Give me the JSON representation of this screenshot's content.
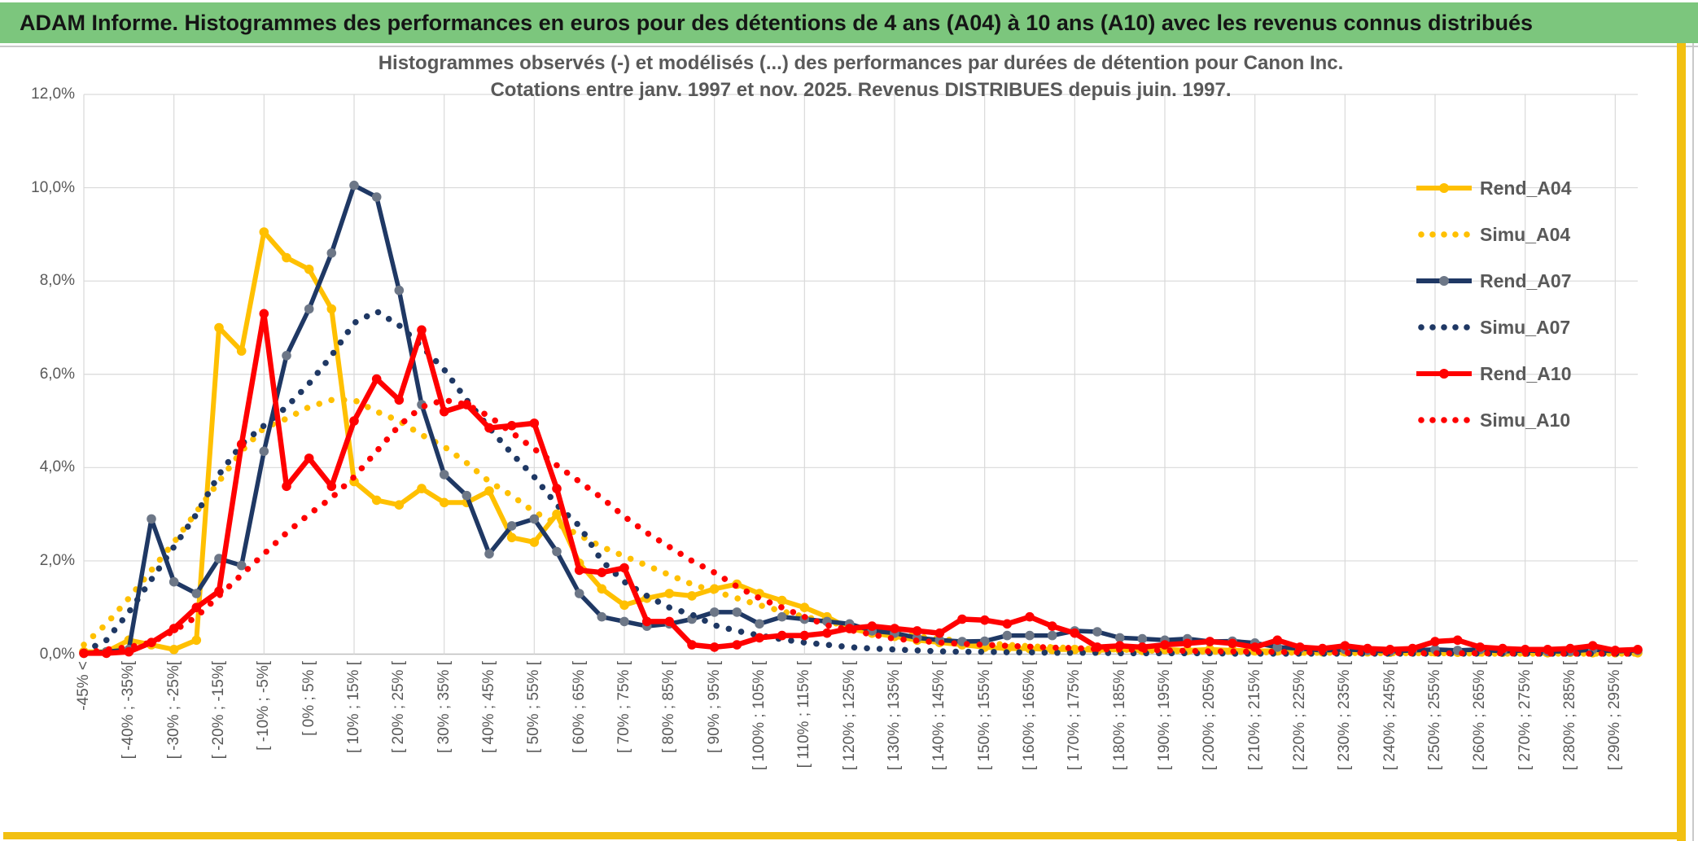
{
  "header": {
    "title": "ADAM Informe. Histogrammes des performances en euros pour des détentions de 4 ans (A04) à 10 ans (A10) avec les revenus connus distribués"
  },
  "chart": {
    "title_line1": "Histogrammes observés (-) et modélisés (...) des performances par durées de détention pour Canon Inc.",
    "title_line2": "Cotations entre janv. 1997 et nov. 2025. Revenus DISTRIBUES depuis juin. 1997.",
    "y_ticks": [
      {
        "label": "12,0%",
        "value": 12
      },
      {
        "label": "10,0%",
        "value": 10
      },
      {
        "label": "8,0%",
        "value": 8
      },
      {
        "label": "6,0%",
        "value": 6
      },
      {
        "label": "4,0%",
        "value": 4
      },
      {
        "label": "2,0%",
        "value": 2
      },
      {
        "label": "0,0%",
        "value": 0
      }
    ],
    "legend": {
      "position": "right",
      "items": [
        {
          "label": "Rend_A04",
          "style": "solid",
          "color": "#FFC000",
          "marker_color": "#FFC000"
        },
        {
          "label": "Simu_A04",
          "style": "dotted",
          "color": "#FFC000"
        },
        {
          "label": "Rend_A07",
          "style": "solid",
          "color": "#1F3864",
          "marker_color": "#6D7787"
        },
        {
          "label": "Simu_A07",
          "style": "dotted",
          "color": "#1F3864"
        },
        {
          "label": "Rend_A10",
          "style": "solid",
          "color": "#FF0000",
          "marker_color": "#FF0000"
        },
        {
          "label": "Simu_A10",
          "style": "dotted",
          "color": "#FF0000"
        }
      ]
    },
    "colors": {
      "header_green": "#7CC67D",
      "gold_border": "#F2C011",
      "gridline": "#D9D9D9",
      "axis_line": "#BFBFBF",
      "text_gray": "#595959",
      "series_yellow": "#FFC000",
      "series_navy": "#1F3864",
      "series_navy_marker": "#6D7787",
      "series_red": "#FF0000"
    }
  },
  "chart_data": {
    "type": "line",
    "note": "Histogram frequencies (%) per 5%-wide performance bins; 70 bins from '< -45%' to [295%;300%[; axis labels shown every 2nd bin; grid on; legend right",
    "n_bins": 70,
    "bin_width_pct": 5,
    "label_interval": 2,
    "ylim": [
      0,
      12
    ],
    "ylabel": "",
    "xlabel": "",
    "x_tick_labels": [
      "-45% <",
      "[ -40% ; -35%[",
      "[ -30% ; -25%[",
      "[ -20% ; -15%[",
      "[ -10% ; -5%[",
      "[ 0% ; 5% [",
      "[ 10% ; 15% [",
      "[ 20% ; 25% [",
      "[ 30% ; 35% [",
      "[ 40% ; 45% [",
      "[ 50% ; 55% [",
      "[ 60% ; 65% [",
      "[ 70% ; 75% [",
      "[ 80% ; 85% [",
      "[ 90% ; 95% [",
      "[ 100% ; 105% [",
      "[ 110% ; 115% [",
      "[ 120% ; 125% [",
      "[ 130% ; 135% [",
      "[ 140% ; 145% [",
      "[ 150% ; 155% [",
      "[ 160% ; 165% [",
      "[ 170% ; 175% [",
      "[ 180% ; 185% [",
      "[ 190% ; 195% [",
      "[ 200% ; 205% [",
      "[ 210% ; 215% [",
      "[ 220% ; 225% [",
      "[ 230% ; 235% [",
      "[ 240% ; 245% [",
      "[ 250% ; 255% [",
      "[ 260% ; 265% [",
      "[ 270% ; 275% [",
      "[ 280% ; 285% [",
      "[ 290% ; 295% ["
    ],
    "series": [
      {
        "name": "Rend_A04",
        "style": "solid",
        "color": "#FFC000",
        "marker_color": "#FFC000",
        "line_width": 6,
        "values": [
          0.05,
          0.05,
          0.3,
          0.2,
          0.1,
          0.3,
          7.0,
          6.5,
          9.05,
          8.5,
          8.25,
          7.4,
          3.7,
          3.3,
          3.2,
          3.55,
          3.25,
          3.25,
          3.5,
          2.5,
          2.4,
          3.0,
          1.95,
          1.4,
          1.05,
          1.2,
          1.3,
          1.25,
          1.4,
          1.5,
          1.3,
          1.15,
          1.0,
          0.8,
          0.55,
          0.45,
          0.38,
          0.3,
          0.25,
          0.2,
          0.15,
          0.12,
          0.12,
          0.1,
          0.1,
          0.08,
          0.1,
          0.08,
          0.1,
          0.08,
          0.1,
          0.08,
          0.07,
          0.07,
          0.06,
          0.05,
          0.05,
          0.05,
          0.04,
          0.05,
          0.05,
          0.04,
          0.05,
          0.04,
          0.04,
          0.03,
          0.04,
          0.03,
          0.03,
          0.03
        ]
      },
      {
        "name": "Simu_A04",
        "style": "dotted",
        "color": "#FFC000",
        "values": [
          0.2,
          0.65,
          1.2,
          1.8,
          2.4,
          3.05,
          3.7,
          4.35,
          4.85,
          5.05,
          5.3,
          5.45,
          5.45,
          5.2,
          5.0,
          4.7,
          4.45,
          4.1,
          3.7,
          3.4,
          3.05,
          2.8,
          2.55,
          2.3,
          2.1,
          1.9,
          1.7,
          1.5,
          1.35,
          1.2,
          1.05,
          0.92,
          0.8,
          0.7,
          0.6,
          0.52,
          0.45,
          0.38,
          0.33,
          0.28,
          0.24,
          0.2,
          0.17,
          0.15,
          0.13,
          0.11,
          0.1,
          0.08,
          0.07,
          0.06,
          0.05,
          0.05,
          0.04,
          0.04,
          0.03,
          0.03,
          0.03,
          0.02,
          0.02,
          0.02,
          0.02,
          0.02,
          0.01,
          0.01,
          0.01,
          0.01,
          0.01,
          0.01,
          0.01,
          0.01
        ]
      },
      {
        "name": "Rend_A07",
        "style": "solid",
        "color": "#1F3864",
        "marker_color": "#6D7787",
        "line_width": 5.5,
        "values": [
          0.02,
          0.05,
          0.1,
          2.9,
          1.55,
          1.3,
          2.05,
          1.9,
          4.35,
          6.4,
          7.4,
          8.6,
          10.05,
          9.8,
          7.8,
          5.35,
          3.85,
          3.4,
          2.15,
          2.75,
          2.9,
          2.2,
          1.3,
          0.8,
          0.7,
          0.6,
          0.65,
          0.75,
          0.9,
          0.9,
          0.65,
          0.8,
          0.75,
          0.7,
          0.65,
          0.5,
          0.45,
          0.35,
          0.3,
          0.27,
          0.28,
          0.4,
          0.4,
          0.4,
          0.5,
          0.48,
          0.35,
          0.33,
          0.3,
          0.33,
          0.27,
          0.28,
          0.24,
          0.15,
          0.12,
          0.08,
          0.1,
          0.08,
          0.06,
          0.08,
          0.1,
          0.08,
          0.1,
          0.06,
          0.08,
          0.06,
          0.06,
          0.1,
          0.06,
          0.08
        ]
      },
      {
        "name": "Simu_A07",
        "style": "dotted",
        "color": "#1F3864",
        "values": [
          0.05,
          0.3,
          0.9,
          1.6,
          2.3,
          3.0,
          3.85,
          4.5,
          4.9,
          5.3,
          5.8,
          6.4,
          7.1,
          7.35,
          7.05,
          6.6,
          6.1,
          5.45,
          4.85,
          4.3,
          3.8,
          3.2,
          2.75,
          2.0,
          1.55,
          1.25,
          1.0,
          0.85,
          0.62,
          0.5,
          0.4,
          0.32,
          0.25,
          0.2,
          0.15,
          0.12,
          0.1,
          0.08,
          0.06,
          0.05,
          0.05,
          0.04,
          0.04,
          0.03,
          0.03,
          0.03,
          0.02,
          0.02,
          0.02,
          0.02,
          0.02,
          0.01,
          0.01,
          0.01,
          0.01,
          0.01,
          0.01,
          0.01,
          0.01,
          0.01,
          0.01,
          0.01,
          0.01,
          0.01,
          0.01,
          0.01,
          0.01,
          0.01,
          0.01,
          0.01
        ]
      },
      {
        "name": "Rend_A10",
        "style": "solid",
        "color": "#FF0000",
        "marker_color": "#FF0000",
        "line_width": 6.5,
        "values": [
          0.02,
          0.02,
          0.05,
          0.25,
          0.55,
          1.0,
          1.35,
          4.5,
          7.3,
          3.6,
          4.2,
          3.6,
          5.0,
          5.9,
          5.45,
          6.95,
          5.2,
          5.35,
          4.85,
          4.9,
          4.95,
          3.55,
          1.8,
          1.75,
          1.85,
          0.7,
          0.7,
          0.2,
          0.15,
          0.2,
          0.35,
          0.4,
          0.4,
          0.45,
          0.55,
          0.6,
          0.55,
          0.5,
          0.45,
          0.75,
          0.73,
          0.65,
          0.8,
          0.6,
          0.45,
          0.15,
          0.18,
          0.15,
          0.2,
          0.23,
          0.27,
          0.23,
          0.15,
          0.3,
          0.15,
          0.12,
          0.18,
          0.12,
          0.1,
          0.12,
          0.27,
          0.3,
          0.15,
          0.12,
          0.1,
          0.1,
          0.12,
          0.18,
          0.08,
          0.1
        ]
      },
      {
        "name": "Simu_A10",
        "style": "dotted",
        "color": "#FF0000",
        "values": [
          0.02,
          0.1,
          0.15,
          0.25,
          0.5,
          0.8,
          1.25,
          1.7,
          2.15,
          2.6,
          3.0,
          3.35,
          3.8,
          4.35,
          4.9,
          5.3,
          5.45,
          5.35,
          5.1,
          4.75,
          4.4,
          4.05,
          3.7,
          3.35,
          2.95,
          2.6,
          2.3,
          2.0,
          1.75,
          1.45,
          1.2,
          1.0,
          0.8,
          0.62,
          0.52,
          0.42,
          0.33,
          0.29,
          0.25,
          0.22,
          0.2,
          0.18,
          0.16,
          0.14,
          0.13,
          0.11,
          0.1,
          0.09,
          0.08,
          0.07,
          0.06,
          0.06,
          0.05,
          0.05,
          0.04,
          0.04,
          0.03,
          0.03,
          0.03,
          0.02,
          0.02,
          0.02,
          0.02,
          0.02,
          0.01,
          0.01,
          0.01,
          0.01,
          0.01,
          0.01
        ]
      }
    ]
  }
}
